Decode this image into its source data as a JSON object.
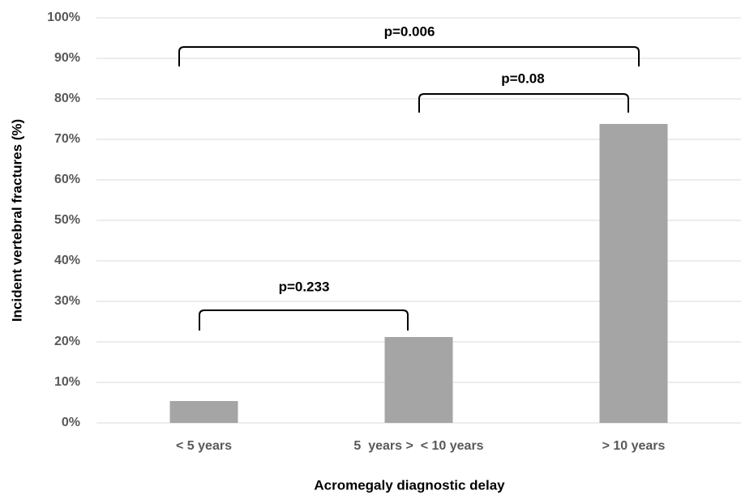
{
  "chart_data": {
    "type": "bar",
    "x_label": "Acromegaly diagnostic delay",
    "y_label": "Incident vertebral fractures (%)",
    "categories": [
      "< 5 years",
      "5  years >  < 10 years",
      "> 10 years"
    ],
    "values": [
      5.4,
      21.2,
      73.8
    ],
    "color": "#a5a5a5",
    "ylim": [
      0,
      100
    ],
    "yticks": [
      {
        "value": 0,
        "label": "0%"
      },
      {
        "value": 10,
        "label": "10%"
      },
      {
        "value": 20,
        "label": "20%"
      },
      {
        "value": 30,
        "label": "30%"
      },
      {
        "value": 40,
        "label": "40%"
      },
      {
        "value": 50,
        "label": "50%"
      },
      {
        "value": 60,
        "label": "60%"
      },
      {
        "value": 70,
        "label": "70%"
      },
      {
        "value": 80,
        "label": "80%"
      },
      {
        "value": 90,
        "label": "90%"
      },
      {
        "value": 100,
        "label": "100%"
      }
    ],
    "grid": true,
    "annotations": [
      "p=0.233",
      "p=0.08",
      "p=0.006"
    ]
  }
}
